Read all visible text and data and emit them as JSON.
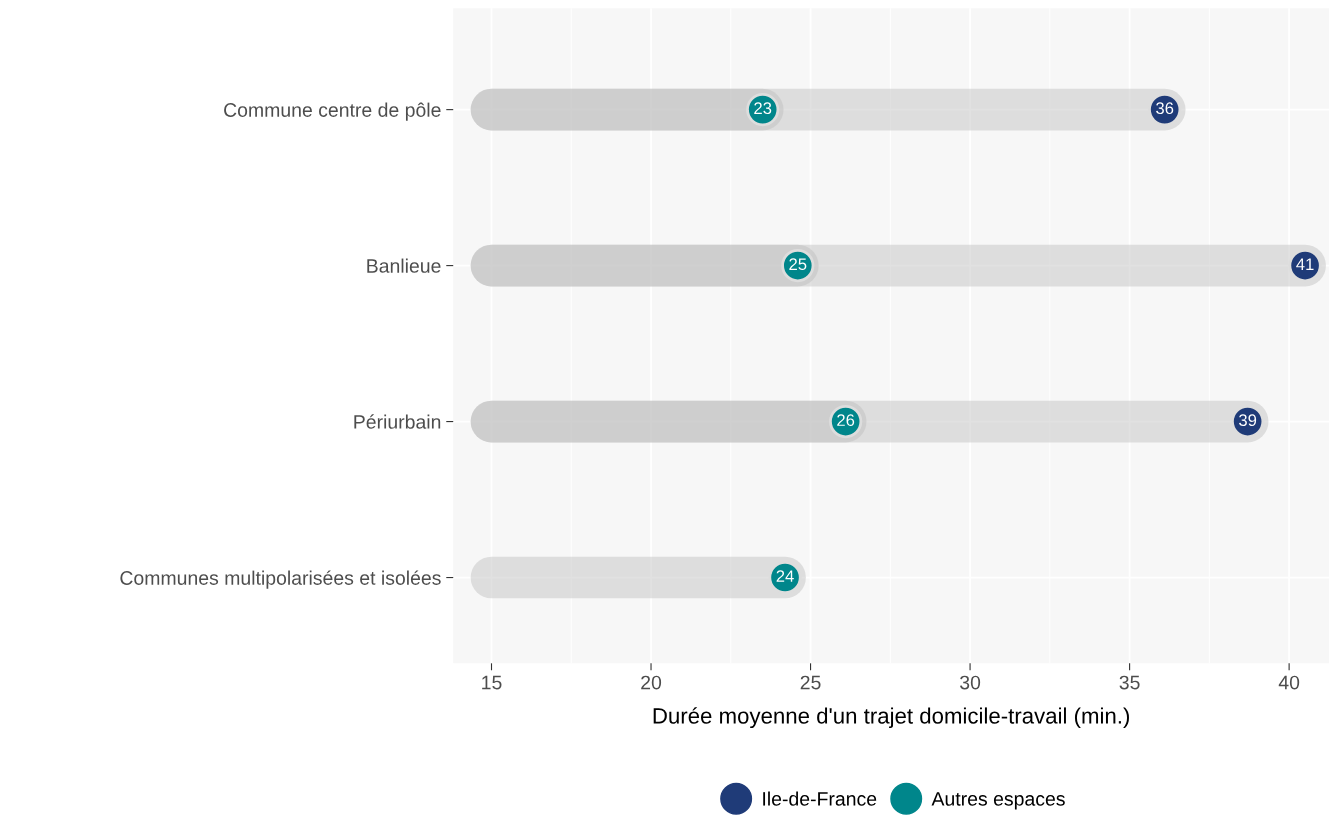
{
  "chart_data": {
    "type": "lollipop",
    "orientation": "horizontal",
    "xlabel": "Durée moyenne d'un trajet domicile-travail (min.)",
    "categories": [
      "Commune centre de pôle",
      "Banlieue",
      "Périurbain",
      "Communes multipolarisées et isolées"
    ],
    "series": [
      {
        "name": "Ile-de-France",
        "color": "#1f3b78",
        "values": [
          36.1,
          40.5,
          38.7,
          null
        ],
        "value_labels": [
          "36",
          "41",
          "39",
          null
        ]
      },
      {
        "name": "Autres espaces",
        "color": "#00868b",
        "values": [
          23.5,
          24.6,
          26.1,
          24.2
        ],
        "value_labels": [
          "23",
          "25",
          "26",
          "24"
        ]
      }
    ],
    "xlim": [
      13.8,
      41.25
    ],
    "xticks": [
      15,
      20,
      25,
      30,
      35,
      40
    ],
    "grid": true,
    "legend": "bottom",
    "marker": "circle"
  }
}
